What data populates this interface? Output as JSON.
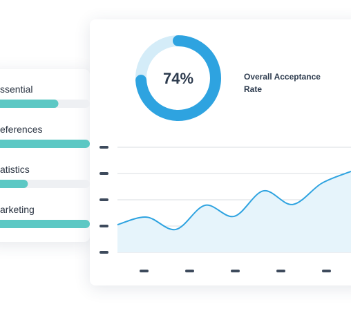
{
  "consent_card": {
    "items": [
      {
        "label": "ssential",
        "progress": 65
      },
      {
        "label": "eferences",
        "progress": 100
      },
      {
        "label": "atistics",
        "progress": 31
      },
      {
        "label": "arketing",
        "progress": 100
      }
    ]
  },
  "stats_card": {
    "donut": {
      "value": {
        "value": 74,
        "label": "74%"
      },
      "caption": "Overall Acceptance Rate"
    },
    "line_chart": {
      "x": [
        0,
        1,
        2,
        3,
        4,
        5,
        6,
        7,
        8
      ],
      "xlim": [
        0,
        8
      ],
      "values": [
        1.05,
        1.34,
        0.87,
        1.79,
        1.37,
        2.34,
        1.82,
        2.63,
        3.08
      ],
      "ylim": [
        0,
        4
      ]
    }
  }
}
